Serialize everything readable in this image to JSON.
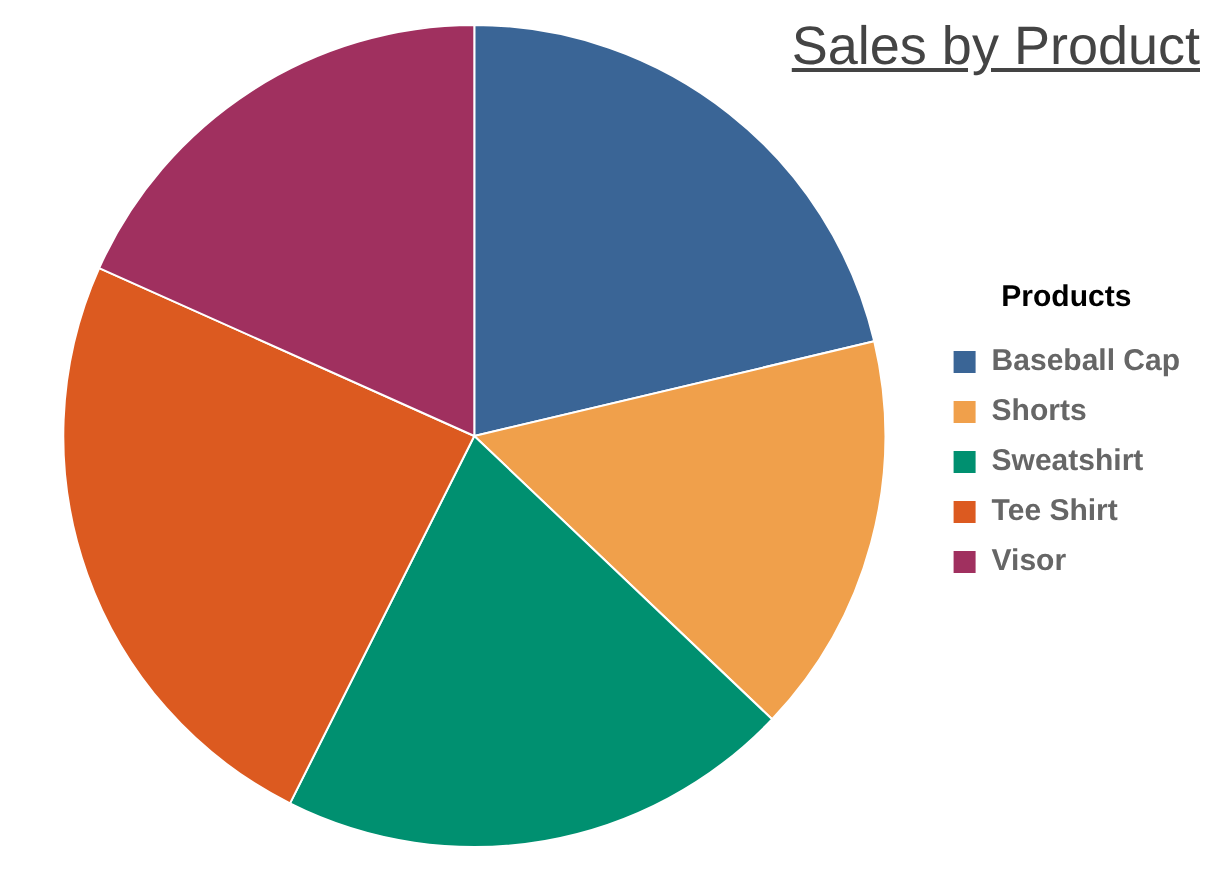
{
  "chart_data": {
    "type": "pie",
    "title": "Sales by Product",
    "legend_title": "Products",
    "legend": "right",
    "categories": [
      "Baseball Cap",
      "Shorts",
      "Sweatshirt",
      "Tee Shirt",
      "Visor"
    ],
    "values": [
      21.3,
      15.8,
      20.3,
      24.3,
      18.3
    ],
    "colors": [
      "#3a6596",
      "#f0a04b",
      "#009070",
      "#dc5a20",
      "#a0305f"
    ]
  }
}
